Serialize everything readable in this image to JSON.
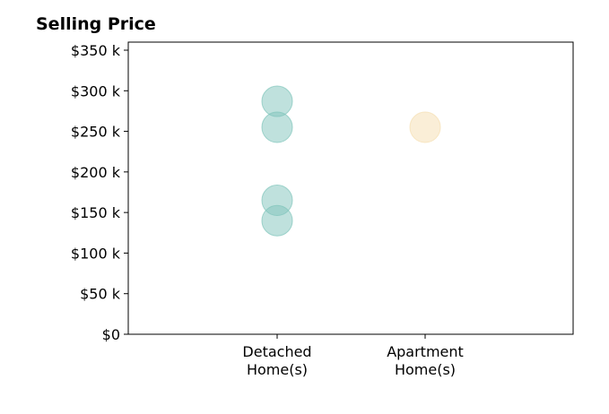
{
  "chart_data": {
    "type": "scatter",
    "title": "Selling Price",
    "xlabel": "",
    "ylabel": "",
    "categories": [
      "Detached\nHome(s)",
      "Apartment\nHome(s)"
    ],
    "y_ticks": [
      "$0",
      "$50 k",
      "$100 k",
      "$150 k",
      "$200 k",
      "$250 k",
      "$300 k",
      "$350 k"
    ],
    "ylim": [
      0,
      350000
    ],
    "grid": false,
    "series": [
      {
        "category": "Detached\nHome(s)",
        "color": "#7fc4bb",
        "values": [
          287000,
          255000,
          165000,
          140000
        ]
      },
      {
        "category": "Apartment\nHome(s)",
        "color": "#f5deb0",
        "values": [
          255000
        ]
      }
    ]
  }
}
